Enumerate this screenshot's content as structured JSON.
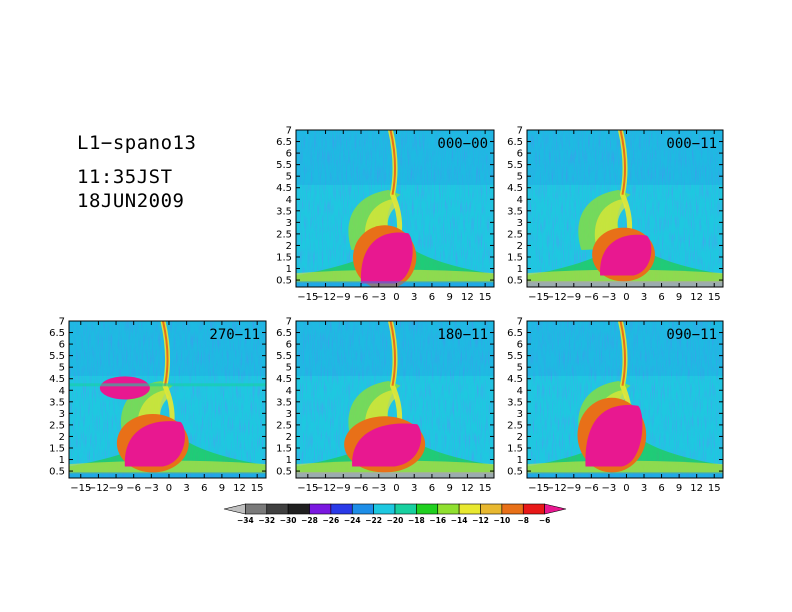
{
  "title_lines": [
    "L1−spano13",
    "11:35JST",
    "18JUN2009"
  ],
  "chart_data": {
    "type": "heatmap",
    "y_ticks": [
      "0.5",
      "1",
      "1.5",
      "2",
      "2.5",
      "3",
      "3.5",
      "4",
      "4.5",
      "5",
      "5.5",
      "6",
      "6.5",
      "7"
    ],
    "y_tick_values": [
      0.5,
      1,
      1.5,
      2,
      2.5,
      3,
      3.5,
      4,
      4.5,
      5,
      5.5,
      6,
      6.5,
      7
    ],
    "x_ticks": [
      "−15",
      "−12",
      "−9",
      "−6",
      "−3",
      "0",
      "3",
      "6",
      "9",
      "12",
      "15"
    ],
    "x_tick_values": [
      -15,
      -12,
      -9,
      -6,
      -3,
      0,
      3,
      6,
      9,
      12,
      15
    ],
    "xlim": [
      -17,
      16.5
    ],
    "ylim": [
      0.2,
      7
    ],
    "panels": [
      {
        "label": "000−00",
        "blob": {
          "x_range": [
            -6,
            2
          ],
          "y_range": [
            0.35,
            2.7
          ]
        },
        "upper_lobe": false,
        "ground_band": "none"
      },
      {
        "label": "000−11",
        "blob": {
          "x_range": [
            -4.5,
            3.5
          ],
          "y_range": [
            0.7,
            2.6
          ]
        },
        "upper_lobe": false,
        "ground_band": "gray"
      },
      {
        "label": "270−11",
        "blob": {
          "x_range": [
            -7.5,
            2
          ],
          "y_range": [
            0.7,
            2.8
          ]
        },
        "upper_lobe": true,
        "ground_band": "none"
      },
      {
        "label": "180−11",
        "blob": {
          "x_range": [
            -7.5,
            3.5
          ],
          "y_range": [
            0.7,
            2.7
          ]
        },
        "upper_lobe": false,
        "ground_band": "gray"
      },
      {
        "label": "090−11",
        "blob": {
          "x_range": [
            -7,
            2
          ],
          "y_range": [
            0.7,
            3.5
          ]
        },
        "upper_lobe": false,
        "ground_band": "none"
      }
    ],
    "colorbar": {
      "labels": [
        "−34",
        "−32",
        "−30",
        "−28",
        "−26",
        "−24",
        "−22",
        "−20",
        "−18",
        "−16",
        "−14",
        "−12",
        "−10",
        "−8",
        "−6"
      ],
      "colors": [
        "#c0c0c0",
        "#7a7a7a",
        "#404040",
        "#202020",
        "#7a18e0",
        "#2a3ae8",
        "#1e8ee8",
        "#1ec8e0",
        "#18d0a0",
        "#20d020",
        "#90e030",
        "#e8e830",
        "#e8b830",
        "#e87018",
        "#e81818",
        "#e81890"
      ]
    }
  }
}
